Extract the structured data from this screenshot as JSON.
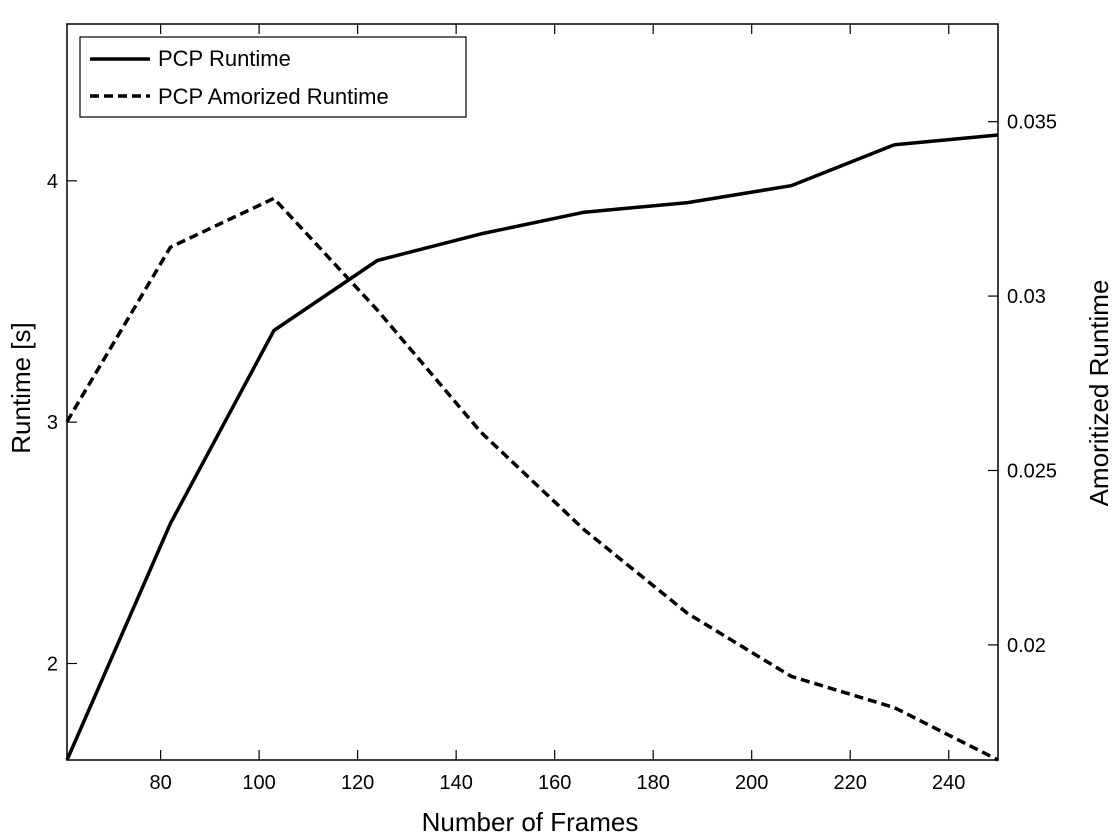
{
  "chart_data": {
    "type": "line",
    "title": "",
    "xlabel": "Number of Frames",
    "ylabel": "Runtime [s]",
    "y2label": "Amoritized Runtime",
    "xlim": [
      61,
      250
    ],
    "ylim": [
      1.6,
      4.65
    ],
    "y2lim": [
      0.0167,
      0.0378
    ],
    "xticks": [
      80,
      100,
      120,
      140,
      160,
      180,
      200,
      220,
      240
    ],
    "yticks": [
      2,
      3,
      4
    ],
    "y2ticks": [
      0.02,
      0.025,
      0.03,
      0.035
    ],
    "ytick_labels": [
      "2",
      "3",
      "4"
    ],
    "y2tick_labels": [
      "0.02",
      "0.025",
      "0.03",
      "0.035"
    ],
    "legend_position": "top-left",
    "grid": false,
    "series": [
      {
        "name": "PCP Runtime",
        "axis": "left",
        "style": "solid",
        "color": "#000000",
        "x": [
          61,
          82,
          103,
          124,
          145,
          166,
          187,
          208,
          229,
          250
        ],
        "values": [
          1.6,
          2.58,
          3.38,
          3.67,
          3.78,
          3.87,
          3.91,
          3.98,
          4.15,
          4.19
        ]
      },
      {
        "name": "PCP Amorized Runtime",
        "axis": "right",
        "style": "dashed",
        "color": "#000000",
        "x": [
          61,
          82,
          103,
          124,
          145,
          166,
          187,
          208,
          229,
          250
        ],
        "values": [
          0.0264,
          0.0314,
          0.0328,
          0.0296,
          0.0261,
          0.0233,
          0.0209,
          0.0191,
          0.0182,
          0.0167
        ]
      }
    ]
  }
}
